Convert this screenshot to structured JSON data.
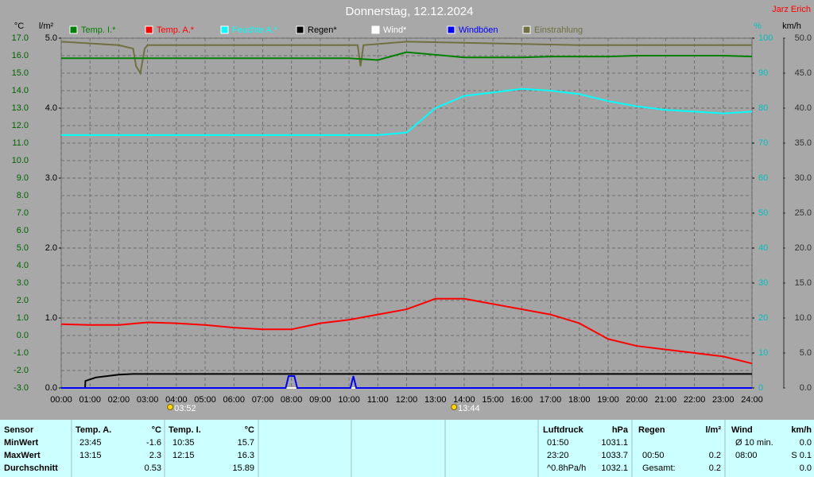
{
  "chart_data": {
    "type": "line",
    "title": "Donnerstag, 12.12.2024",
    "author": "Jarz Erich",
    "ylabel": "°C",
    "y2label": "l/m²",
    "y3label": "%",
    "y4label": "km/h",
    "x": [
      0,
      1,
      2,
      3,
      4,
      5,
      6,
      7,
      8,
      9,
      10,
      11,
      12,
      13,
      14,
      15,
      16,
      17,
      18,
      19,
      20,
      21,
      22,
      23,
      24
    ],
    "xlim": [
      0,
      24
    ],
    "xticks": [
      {
        "value": 0,
        "label": "00:00"
      },
      {
        "value": 1,
        "label": "01:00"
      },
      {
        "value": 2,
        "label": "02:00"
      },
      {
        "value": 3,
        "label": "03:00"
      },
      {
        "value": 4,
        "label": "04:00"
      },
      {
        "value": 5,
        "label": "05:00"
      },
      {
        "value": 6,
        "label": "06:00"
      },
      {
        "value": 7,
        "label": "07:00"
      },
      {
        "value": 8,
        "label": "08:00"
      },
      {
        "value": 9,
        "label": "09:00"
      },
      {
        "value": 10,
        "label": "10:00"
      },
      {
        "value": 11,
        "label": "11:00"
      },
      {
        "value": 12,
        "label": "12:00"
      },
      {
        "value": 13,
        "label": "13:00"
      },
      {
        "value": 14,
        "label": "14:00"
      },
      {
        "value": 15,
        "label": "15:00"
      },
      {
        "value": 16,
        "label": "16:00"
      },
      {
        "value": 17,
        "label": "17:00"
      },
      {
        "value": 18,
        "label": "18:00"
      },
      {
        "value": 19,
        "label": "19:00"
      },
      {
        "value": 20,
        "label": "20:00"
      },
      {
        "value": 21,
        "label": "21:00"
      },
      {
        "value": 22,
        "label": "22:00"
      },
      {
        "value": 23,
        "label": "23:00"
      },
      {
        "value": 24,
        "label": "24:00"
      }
    ],
    "ylim": [
      -3,
      17
    ],
    "yticks": [
      {
        "value": -3,
        "label": "-3.0"
      },
      {
        "value": -2,
        "label": "-2.0"
      },
      {
        "value": -1,
        "label": "-1.0"
      },
      {
        "value": 0,
        "label": "0.0"
      },
      {
        "value": 1,
        "label": "1.0"
      },
      {
        "value": 2,
        "label": "2.0"
      },
      {
        "value": 3,
        "label": "3.0"
      },
      {
        "value": 4,
        "label": "4.0"
      },
      {
        "value": 5,
        "label": "5.0"
      },
      {
        "value": 6,
        "label": "6.0"
      },
      {
        "value": 7,
        "label": "7.0"
      },
      {
        "value": 8,
        "label": "8.0"
      },
      {
        "value": 9,
        "label": "9.0"
      },
      {
        "value": 10,
        "label": "10.0"
      },
      {
        "value": 11,
        "label": "11.0"
      },
      {
        "value": 12,
        "label": "12.0"
      },
      {
        "value": 13,
        "label": "13.0"
      },
      {
        "value": 14,
        "label": "14.0"
      },
      {
        "value": 15,
        "label": "15.0"
      },
      {
        "value": 16,
        "label": "16.0"
      },
      {
        "value": 17,
        "label": "17.0"
      }
    ],
    "y2lim": [
      0,
      5
    ],
    "y2ticks": [
      {
        "value": 0,
        "label": "0.0"
      },
      {
        "value": 1,
        "label": "1.0"
      },
      {
        "value": 2,
        "label": "2.0"
      },
      {
        "value": 3,
        "label": "3.0"
      },
      {
        "value": 4,
        "label": "4.0"
      },
      {
        "value": 5,
        "label": "5.0"
      }
    ],
    "y3lim": [
      0,
      100
    ],
    "y3ticks": [
      0,
      10,
      20,
      30,
      40,
      50,
      60,
      70,
      80,
      90,
      100
    ],
    "y4lim": [
      0,
      50
    ],
    "y4ticks": [
      {
        "value": 0,
        "label": "0.0"
      },
      {
        "value": 5,
        "label": "5.0"
      },
      {
        "value": 10,
        "label": "10.0"
      },
      {
        "value": 15,
        "label": "15.0"
      },
      {
        "value": 20,
        "label": "20.0"
      },
      {
        "value": 25,
        "label": "25.0"
      },
      {
        "value": 30,
        "label": "30.0"
      },
      {
        "value": 35,
        "label": "35.0"
      },
      {
        "value": 40,
        "label": "40.0"
      },
      {
        "value": 45,
        "label": "45.0"
      },
      {
        "value": 50,
        "label": "50.0"
      }
    ],
    "grid": true,
    "series": [
      {
        "name": "Temp. I.*",
        "color": "#008000",
        "axis": "y",
        "values": [
          15.85,
          15.85,
          15.85,
          15.85,
          15.85,
          15.85,
          15.85,
          15.85,
          15.85,
          15.85,
          15.85,
          15.75,
          16.2,
          16.05,
          15.9,
          15.9,
          15.9,
          15.95,
          15.95,
          15.95,
          16.0,
          16.0,
          16.0,
          16.0,
          15.95
        ]
      },
      {
        "name": "Temp. A.*",
        "color": "#ff0000",
        "axis": "y",
        "values": [
          0.65,
          0.6,
          0.6,
          0.75,
          0.7,
          0.6,
          0.45,
          0.35,
          0.35,
          0.7,
          0.9,
          1.2,
          1.5,
          2.1,
          2.1,
          1.8,
          1.5,
          1.2,
          0.7,
          -0.2,
          -0.6,
          -0.8,
          -1.0,
          -1.2,
          -1.6
        ]
      },
      {
        "name": "Feuchte A.*",
        "color": "#00ffff",
        "axis": "y3",
        "values": [
          72.3,
          72.3,
          72.3,
          72.3,
          72.3,
          72.3,
          72.3,
          72.3,
          72.3,
          72.3,
          72.3,
          72.3,
          73,
          80,
          83.5,
          84.5,
          85.5,
          85,
          84,
          82,
          80.5,
          79.5,
          79,
          78.5,
          79
        ]
      },
      {
        "name": "Regen*",
        "color": "#000000",
        "axis": "y2",
        "x": [
          0,
          0.83,
          0.84,
          1.2,
          2.0,
          2.5,
          24
        ],
        "values": [
          0,
          0,
          0.1,
          0.15,
          0.19,
          0.2,
          0.2
        ]
      },
      {
        "name": "Wind*",
        "color": "#ffffff",
        "axis": "y4",
        "x": [
          0,
          24
        ],
        "values": [
          0,
          0
        ]
      },
      {
        "name": "Windböen",
        "color": "#0000ff",
        "axis": "y4",
        "x": [
          0,
          7.8,
          7.9,
          8.1,
          8.2,
          10.05,
          10.15,
          10.25,
          24
        ],
        "values": [
          0,
          0,
          1.7,
          1.7,
          0,
          0,
          1.7,
          0,
          0
        ]
      },
      {
        "name": "Einstrahlung",
        "color": "#707040",
        "axis": "y3",
        "x": [
          0,
          2,
          2.5,
          2.6,
          2.75,
          2.9,
          3.0,
          6,
          10.3,
          10.4,
          10.5,
          12,
          18,
          24
        ],
        "values": [
          99,
          98,
          97,
          92,
          90,
          97,
          98,
          98,
          98,
          92,
          98,
          99,
          98,
          98
        ]
      }
    ],
    "annotations": [
      {
        "x": 3.87,
        "text": "03:52"
      },
      {
        "x": 13.73,
        "text": "13:44"
      }
    ]
  },
  "table": {
    "header": [
      "Sensor",
      "Temp. A.",
      "°C",
      "Temp. I.",
      "°C",
      "Luftdruck",
      "hPa",
      "Regen",
      "l/m²",
      "Wind",
      "km/h"
    ],
    "rows": [
      [
        "MinWert",
        "23:45",
        "-1.6",
        "10:35",
        "15.7",
        "01:50",
        "1031.1",
        null,
        null,
        "Ø 10 min.",
        "0.0"
      ],
      [
        "MaxWert",
        "13:15",
        "2.3",
        "12:15",
        "16.3",
        "23:20",
        "1033.7",
        "00:50",
        "0.2",
        "08:00",
        "S 0.1"
      ],
      [
        "Durchschnitt",
        null,
        "0.53",
        null,
        "15.89",
        "^0.8hPa/h",
        "1032.1",
        "Gesamt:",
        "0.2",
        null,
        "0.0"
      ]
    ]
  }
}
